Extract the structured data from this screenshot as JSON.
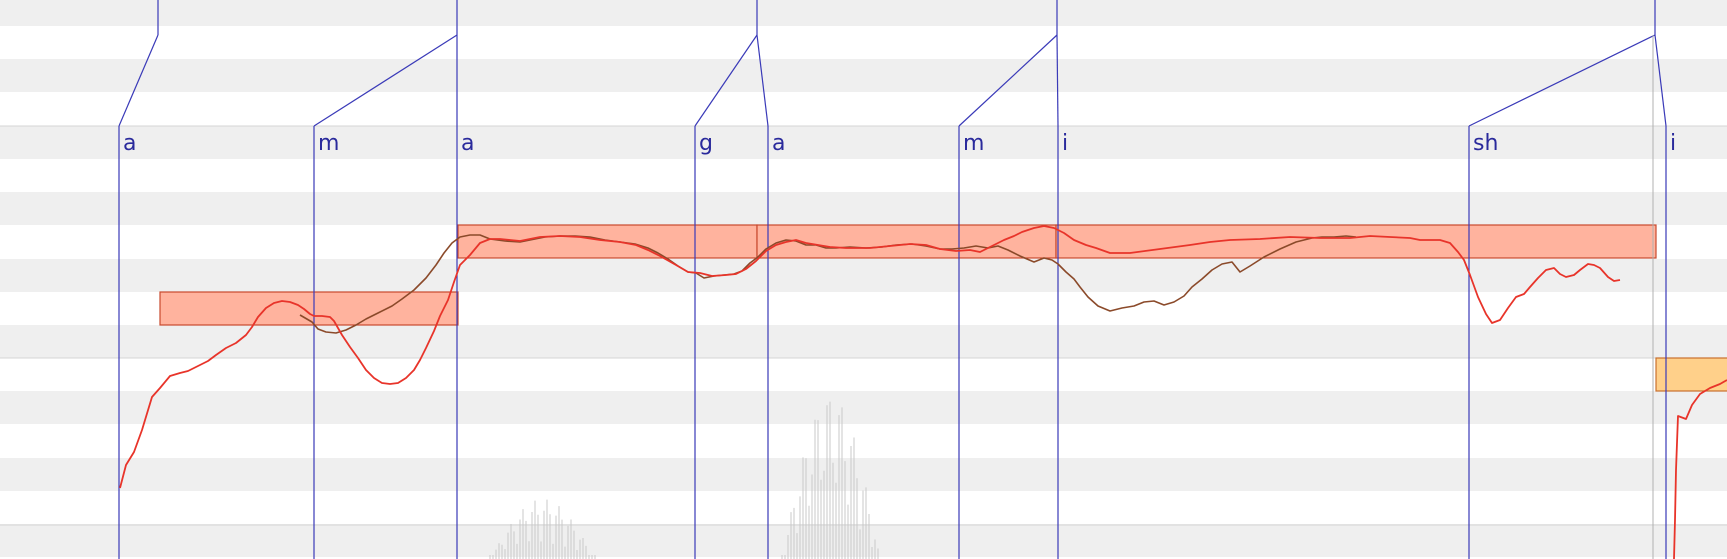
{
  "colors": {
    "row_shade": "#efefef",
    "row_separator": "#d4d4d4",
    "phoneme_line": "#3a3ab8",
    "phoneme_label": "#2a2a9c",
    "note_fill": "#ffb39e",
    "note_stroke": "#c8492e",
    "selected_note_fill": "#ffd08a",
    "selected_note_stroke": "#c8702e",
    "pitch_curve": "#e8342a",
    "base_pitch_curve": "#8b4a2a",
    "waveform": "#c8c8c8"
  },
  "phonemes": [
    {
      "label": "a"
    },
    {
      "label": "m"
    },
    {
      "label": "a"
    },
    {
      "label": "g"
    },
    {
      "label": "a"
    },
    {
      "label": "m"
    },
    {
      "label": "i"
    },
    {
      "label": "sh"
    },
    {
      "label": "i"
    }
  ],
  "notes": [
    {
      "name": "note-1",
      "selected": false
    },
    {
      "name": "note-2",
      "selected": false
    },
    {
      "name": "note-3",
      "selected": false
    },
    {
      "name": "note-4",
      "selected": false
    },
    {
      "name": "note-5",
      "selected": true
    }
  ]
}
